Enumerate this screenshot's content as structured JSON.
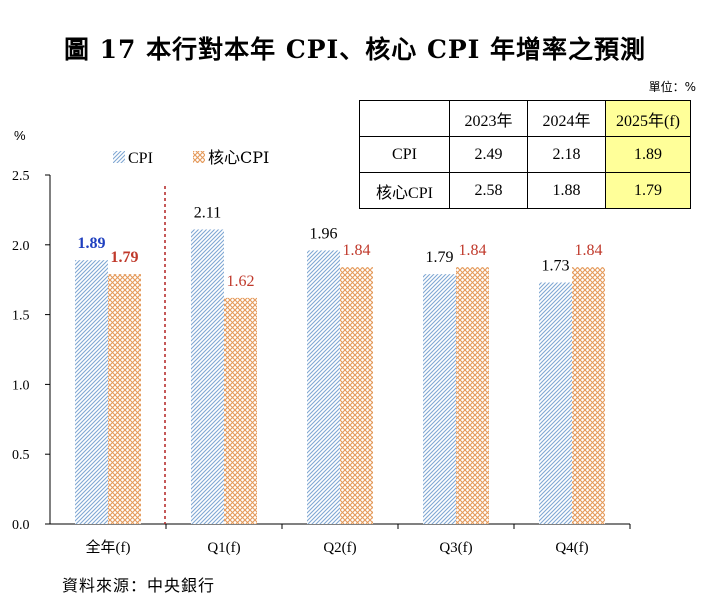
{
  "title": "圖 17  本行對本年 CPI、核心 CPI 年增率之預測",
  "unit_label": "單位：%",
  "source": "資料來源：中央銀行",
  "table": {
    "header": [
      "",
      "2023年",
      "2024年",
      "2025年(f)"
    ],
    "rows": [
      {
        "label": "CPI",
        "values": [
          "2.49",
          "2.18",
          "1.89"
        ]
      },
      {
        "label": "核心CPI",
        "values": [
          "2.58",
          "1.88",
          "1.79"
        ]
      }
    ]
  },
  "colors": {
    "cpi_hatch": "#7fa7d3",
    "core_hatch": "#e59a5a",
    "cpi_label_bold": "#1f3fbf",
    "core_label": "#c0392b",
    "divider": "#b22222",
    "highlight": "#ffff99"
  },
  "chart_data": {
    "type": "bar",
    "categories": [
      "全年(f)",
      "Q1(f)",
      "Q2(f)",
      "Q3(f)",
      "Q4(f)"
    ],
    "series": [
      {
        "name": "CPI",
        "values": [
          1.89,
          2.11,
          1.96,
          1.79,
          1.73
        ]
      },
      {
        "name": "核心CPI",
        "values": [
          1.79,
          1.62,
          1.84,
          1.84,
          1.84
        ]
      }
    ],
    "ylabel": "%",
    "ylim": [
      0,
      2.5
    ],
    "yticks": [
      "0.0",
      "0.5",
      "1.0",
      "1.5",
      "2.0",
      "2.5"
    ],
    "grid": false,
    "legend": "top-left",
    "bold_labels_category": "全年(f)"
  }
}
